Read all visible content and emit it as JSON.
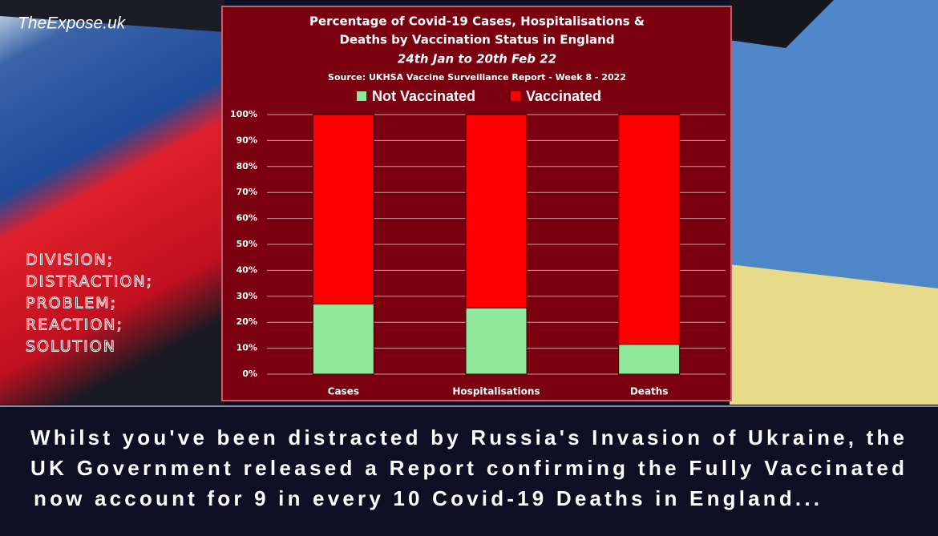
{
  "watermark": "TheExpose.uk",
  "slogan": [
    "DIVISION;",
    "DISTRACTION;",
    "PROBLEM;",
    "REACTION;",
    "SOLUTION"
  ],
  "caption": [
    "Whilst you've been distracted by Russia's Invasion of Ukraine, the",
    "UK Government released a Report confirming the Fully Vaccinated",
    "now account for 9 in every 10 Covid-19 Deaths in England..."
  ],
  "chart_data": {
    "type": "stacked_bar",
    "title": [
      "Percentage of Covid-19 Cases, Hospitalisations &",
      "Deaths by Vaccination Status in England"
    ],
    "subtitle": "24th Jan to 20th Feb 22",
    "source": "Source: UKHSA Vaccine Surveillance Report - Week 8 - 2022",
    "categories": [
      "Cases",
      "Hospitalisations",
      "Deaths"
    ],
    "series": [
      {
        "name": "Not Vaccinated",
        "color": "#8ee89a",
        "values": [
          27,
          25.5,
          11.5
        ]
      },
      {
        "name": "Vaccinated",
        "color": "#ff0000",
        "values": [
          73,
          74.5,
          88.5
        ]
      }
    ],
    "ylim": [
      0,
      100
    ],
    "yticks": [
      {
        "value": 0,
        "label": "0%"
      },
      {
        "value": 10,
        "label": "10%"
      },
      {
        "value": 20,
        "label": "20%"
      },
      {
        "value": 30,
        "label": "30%"
      },
      {
        "value": 40,
        "label": "40%"
      },
      {
        "value": 50,
        "label": "50%"
      },
      {
        "value": 60,
        "label": "60%"
      },
      {
        "value": 70,
        "label": "70%"
      },
      {
        "value": 80,
        "label": "80%"
      },
      {
        "value": 90,
        "label": "90%"
      },
      {
        "value": 100,
        "label": "100%"
      }
    ],
    "grid": true,
    "legend": "top"
  }
}
